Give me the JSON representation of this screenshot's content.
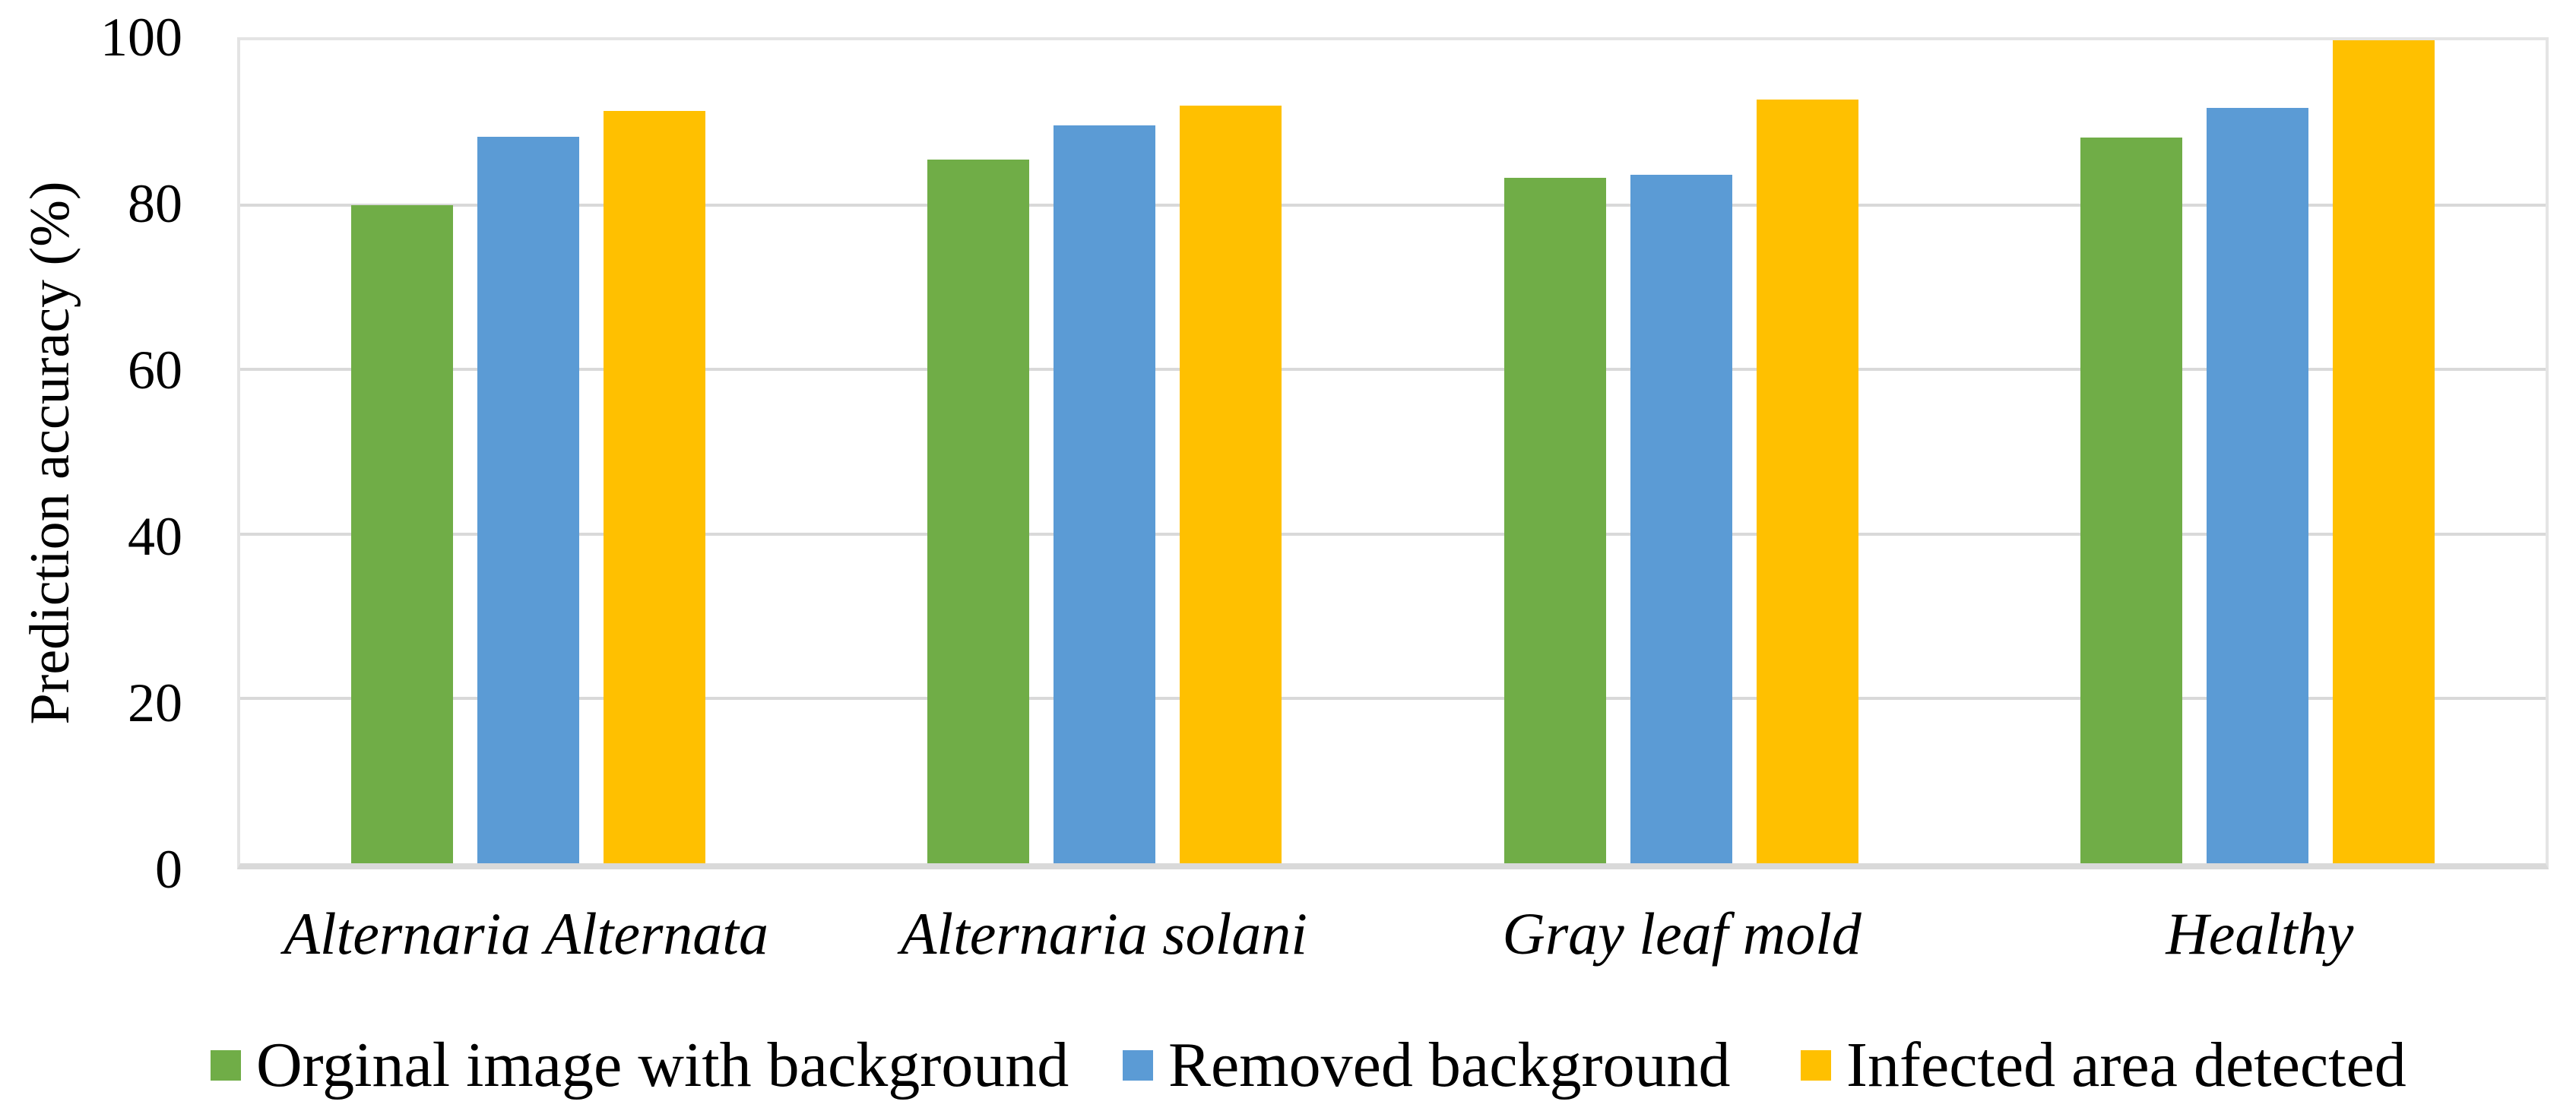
{
  "chart_data": {
    "type": "bar",
    "title": "",
    "categories": [
      "Alternaria Alternata",
      "Alternaria solani",
      "Gray leaf mold",
      "Healthy"
    ],
    "series": [
      {
        "name": "Orginal image with background",
        "color": "#70AD47",
        "values": [
          80,
          85.5,
          83.3,
          88.2
        ]
      },
      {
        "name": "Removed background",
        "color": "#5B9BD5",
        "values": [
          88.3,
          89.7,
          83.7,
          91.8
        ]
      },
      {
        "name": "Infected area detected",
        "color": "#FFC000",
        "values": [
          91.4,
          92.1,
          92.8,
          100
        ]
      }
    ],
    "xlabel": "",
    "ylabel": "Prediction accuracy (%)",
    "ylim": [
      0,
      100
    ],
    "yticks": [
      0,
      20,
      40,
      60,
      80,
      100
    ],
    "grid": true,
    "gridline_color": "#D9D9D9",
    "axis_line_color": "#D9D9D9",
    "text_color": "#000000",
    "background_color": "#FFFFFF",
    "legend_position": "bottom",
    "category_label_style": "italic"
  }
}
